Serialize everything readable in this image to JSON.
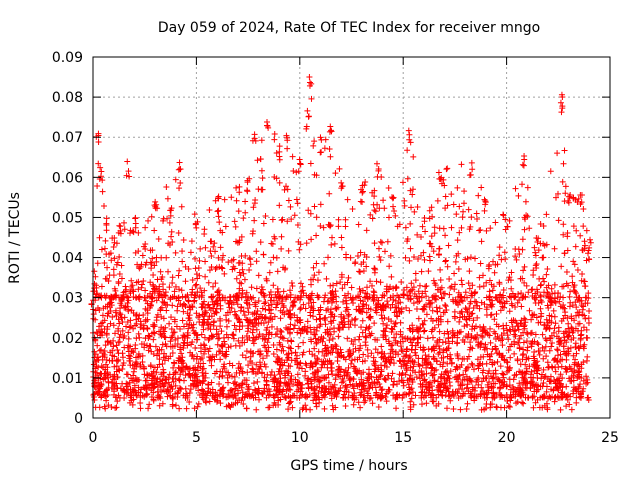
{
  "chart_data": {
    "type": "scatter",
    "title": "Day 059 of 2024, Rate Of TEC Index for receiver mngo",
    "xlabel": "GPS time / hours",
    "ylabel": "ROTI / TECUs",
    "xlim": [
      0,
      25
    ],
    "ylim": [
      0,
      0.09
    ],
    "xticks": [
      0,
      5,
      10,
      15,
      20,
      25
    ],
    "xtick_labels": [
      "0",
      "5",
      "10",
      "15",
      "20",
      "25"
    ],
    "yticks": [
      0,
      0.01,
      0.02,
      0.03,
      0.04,
      0.05,
      0.06,
      0.07,
      0.08,
      0.09
    ],
    "ytick_labels": [
      "0",
      "0.01",
      "0.02",
      "0.03",
      "0.04",
      "0.05",
      "0.06",
      "0.07",
      "0.08",
      "0.09"
    ],
    "grid": true,
    "marker": "+",
    "color": "#ff0000",
    "series": [
      {
        "name": "ROTI",
        "x_range_hours": [
          0,
          24
        ],
        "typical_range": [
          0.005,
          0.03
        ],
        "envelope": [
          {
            "x": 0.0,
            "y": 0.03
          },
          {
            "x": 0.2,
            "y": 0.071
          },
          {
            "x": 0.4,
            "y": 0.063
          },
          {
            "x": 0.6,
            "y": 0.05
          },
          {
            "x": 1.0,
            "y": 0.045
          },
          {
            "x": 1.3,
            "y": 0.048
          },
          {
            "x": 1.7,
            "y": 0.064
          },
          {
            "x": 2.0,
            "y": 0.05
          },
          {
            "x": 3.0,
            "y": 0.055
          },
          {
            "x": 4.2,
            "y": 0.065
          },
          {
            "x": 5.0,
            "y": 0.05
          },
          {
            "x": 6.0,
            "y": 0.055
          },
          {
            "x": 7.5,
            "y": 0.06
          },
          {
            "x": 7.8,
            "y": 0.071
          },
          {
            "x": 8.4,
            "y": 0.076
          },
          {
            "x": 9.0,
            "y": 0.068
          },
          {
            "x": 9.4,
            "y": 0.071
          },
          {
            "x": 10.0,
            "y": 0.065
          },
          {
            "x": 10.5,
            "y": 0.086
          },
          {
            "x": 11.0,
            "y": 0.07
          },
          {
            "x": 11.5,
            "y": 0.075
          },
          {
            "x": 12.0,
            "y": 0.06
          },
          {
            "x": 13.0,
            "y": 0.058
          },
          {
            "x": 13.8,
            "y": 0.064
          },
          {
            "x": 14.5,
            "y": 0.055
          },
          {
            "x": 15.3,
            "y": 0.072
          },
          {
            "x": 16.0,
            "y": 0.05
          },
          {
            "x": 16.8,
            "y": 0.062
          },
          {
            "x": 18.3,
            "y": 0.064
          },
          {
            "x": 19.0,
            "y": 0.055
          },
          {
            "x": 20.0,
            "y": 0.05
          },
          {
            "x": 20.8,
            "y": 0.066
          },
          {
            "x": 21.5,
            "y": 0.045
          },
          {
            "x": 22.7,
            "y": 0.081
          },
          {
            "x": 23.0,
            "y": 0.056
          },
          {
            "x": 23.6,
            "y": 0.057
          },
          {
            "x": 24.0,
            "y": 0.045
          }
        ],
        "minimum": 0.002
      }
    ]
  }
}
